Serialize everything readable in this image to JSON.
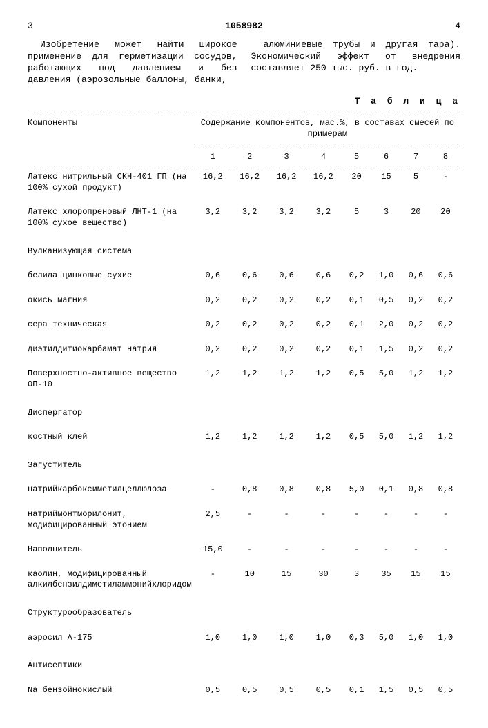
{
  "page_left": "3",
  "patent_number": "1058982",
  "page_right": "4",
  "intro_left": "Изобретение может найти широкое применение для герметизации сосудов, работающих под давлением и без давления (аэрозольные баллоны, банки,",
  "intro_right": "алюминиевые трубы и другая тара). Экономический эффект от внедрения составляет 250 тыс. руб. в год.",
  "table_label": "Т а б л и ц а",
  "header_components": "Компоненты",
  "header_span": "Содержание компонентов, мас.%, в составах смесей по примерам",
  "cols": [
    "1",
    "2",
    "3",
    "4",
    "5",
    "6",
    "7",
    "8"
  ],
  "rows": [
    {
      "label": "Латекс нитрильный СКН-401 ГП (на 100% сухой продукт)",
      "indent": 0,
      "vals": [
        "16,2",
        "16,2",
        "16,2",
        "16,2",
        "20",
        "15",
        "5",
        "-"
      ]
    },
    {
      "label": "Латекс хлоропреновый ЛНТ-1 (на 100% сухое вещество)",
      "indent": 0,
      "vals": [
        "3,2",
        "3,2",
        "3,2",
        "3,2",
        "5",
        "3",
        "20",
        "20"
      ]
    },
    {
      "label": "Вулканизующая система",
      "indent": 0,
      "group": true
    },
    {
      "label": "белила цинковые сухие",
      "indent": 1,
      "vals": [
        "0,6",
        "0,6",
        "0,6",
        "0,6",
        "0,2",
        "1,0",
        "0,6",
        "0,6"
      ]
    },
    {
      "label": "окись магния",
      "indent": 1,
      "vals": [
        "0,2",
        "0,2",
        "0,2",
        "0,2",
        "0,1",
        "0,5",
        "0,2",
        "0,2"
      ]
    },
    {
      "label": "сера техническая",
      "indent": 1,
      "vals": [
        "0,2",
        "0,2",
        "0,2",
        "0,2",
        "0,1",
        "2,0",
        "0,2",
        "0,2"
      ]
    },
    {
      "label": "диэтилдитиокарбамат натрия",
      "indent": 1,
      "vals": [
        "0,2",
        "0,2",
        "0,2",
        "0,2",
        "0,1",
        "1,5",
        "0,2",
        "0,2"
      ]
    },
    {
      "label": "Поверхностно-активное вещество ОП-10",
      "indent": 0,
      "vals": [
        "1,2",
        "1,2",
        "1,2",
        "1,2",
        "0,5",
        "5,0",
        "1,2",
        "1,2"
      ]
    },
    {
      "label": "Диспергатор",
      "indent": 0,
      "group": true
    },
    {
      "label": "костный клей",
      "indent": 1,
      "vals": [
        "1,2",
        "1,2",
        "1,2",
        "1,2",
        "0,5",
        "5,0",
        "1,2",
        "1,2"
      ]
    },
    {
      "label": "Загуститель",
      "indent": 0,
      "group": true
    },
    {
      "label": "натрийкарбоксиметилцеллюлоза",
      "indent": 1,
      "vals": [
        "-",
        "0,8",
        "0,8",
        "0,8",
        "5,0",
        "0,1",
        "0,8",
        "0,8"
      ]
    },
    {
      "label": "натриймонтморилонит, модифицированный этонием",
      "indent": 1,
      "vals": [
        "2,5",
        "-",
        "-",
        "-",
        "-",
        "-",
        "-",
        "-"
      ]
    },
    {
      "label": "Наполнитель",
      "indent": 0,
      "vals": [
        "15,0",
        "-",
        "-",
        "-",
        "-",
        "-",
        "-",
        "-"
      ]
    },
    {
      "label": "каолин, модифицированный алкилбензилдиметиламмонийхлоридом",
      "indent": 1,
      "vals": [
        "-",
        "10",
        "15",
        "30",
        "3",
        "35",
        "15",
        "15"
      ]
    },
    {
      "label": "Структурообразователь",
      "indent": 0,
      "group": true
    },
    {
      "label": "аэросил А-175",
      "indent": 1,
      "vals": [
        "1,0",
        "1,0",
        "1,0",
        "1,0",
        "0,3",
        "5,0",
        "1,0",
        "1,0"
      ]
    },
    {
      "label": "Антисептики",
      "indent": 0,
      "group": true
    },
    {
      "label": "Na бензойнокислый",
      "indent": 1,
      "vals": [
        "0,5",
        "0,5",
        "0,5",
        "0,5",
        "0,1",
        "1,5",
        "0,5",
        "0,5"
      ]
    }
  ]
}
